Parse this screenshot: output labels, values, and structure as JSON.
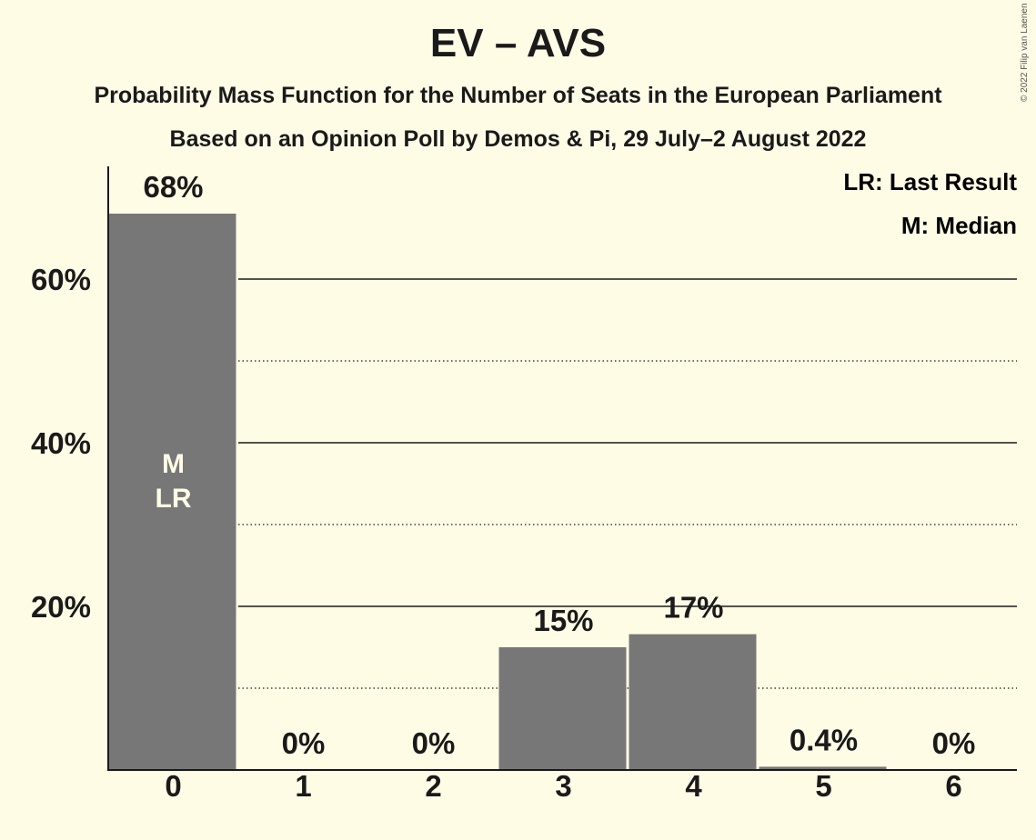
{
  "page": {
    "title": "EV – AVS",
    "subtitle1": "Probability Mass Function for the Number of Seats in the European Parliament",
    "subtitle2": "Based on an Opinion Poll by Demos & Pi, 29 July–2 August 2022",
    "copyright": "© 2022 Filip van Laenen"
  },
  "legend": {
    "lr": "LR: Last Result",
    "m": "M: Median"
  },
  "colors": {
    "background": "#FFFCE6",
    "bar": "#777777",
    "text": "#1a1a1a",
    "bar_marker_text": "#FFFCE6"
  },
  "chart_data": {
    "type": "bar",
    "categories": [
      "0",
      "1",
      "2",
      "3",
      "4",
      "5",
      "6"
    ],
    "values": [
      68,
      0,
      0,
      15,
      16.6,
      0.4,
      0
    ],
    "data_labels": [
      "68%",
      "0%",
      "0%",
      "15%",
      "17%",
      "0.4%",
      "0%"
    ],
    "ylim": [
      0,
      74
    ],
    "yticks": [
      20,
      40,
      60
    ],
    "ytick_labels": [
      "20%",
      "40%",
      "60%"
    ],
    "minor_gridlines": [
      10,
      30,
      50
    ],
    "grid": true,
    "median_index": 0,
    "last_result_index": 0,
    "median_label": "M",
    "last_result_label": "LR",
    "legend_position": "top-right"
  }
}
